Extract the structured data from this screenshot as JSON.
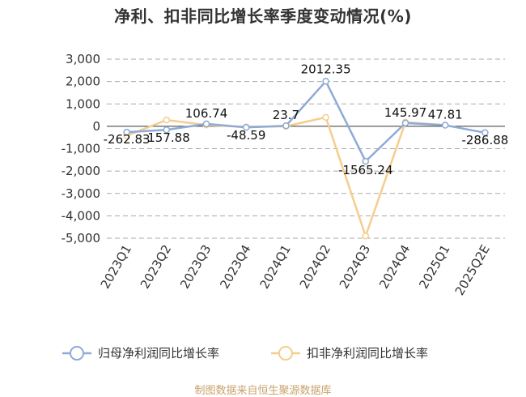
{
  "chart_data": {
    "type": "line",
    "title": "净利、扣非同比增长率季度变动情况(%)",
    "categories": [
      "2023Q1",
      "2023Q2",
      "2023Q3",
      "2023Q4",
      "2024Q1",
      "2024Q2",
      "2024Q3",
      "2024Q4",
      "2025Q1",
      "2025Q2E"
    ],
    "y_ticks": [
      "3,000",
      "2,000",
      "1,000",
      "0",
      "-1,000",
      "-2,000",
      "-3,000",
      "-4,000",
      "-5,000"
    ],
    "ylim": [
      -5000,
      3000
    ],
    "grid": "horizontal dashed",
    "legend_position": "bottom",
    "series": [
      {
        "name": "归母净利润同比增长率",
        "color": "#8eaad6",
        "values": [
          -262.83,
          -157.88,
          106.74,
          -48.59,
          23.7,
          2012.35,
          -1565.24,
          145.97,
          47.81,
          -286.88
        ],
        "labels": [
          "-262.83",
          "-157.88",
          "106.74",
          "-48.59",
          "23.7",
          "2012.35",
          "-1565.24",
          "145.97",
          "47.81",
          "-286.88"
        ]
      },
      {
        "name": "扣非净利润同比增长率",
        "color": "#f5cd8e",
        "values": [
          -420,
          280,
          60,
          -30,
          0,
          400,
          -4900,
          180,
          50,
          null
        ]
      }
    ]
  },
  "footer": "制图数据来自恒生聚源数据库"
}
